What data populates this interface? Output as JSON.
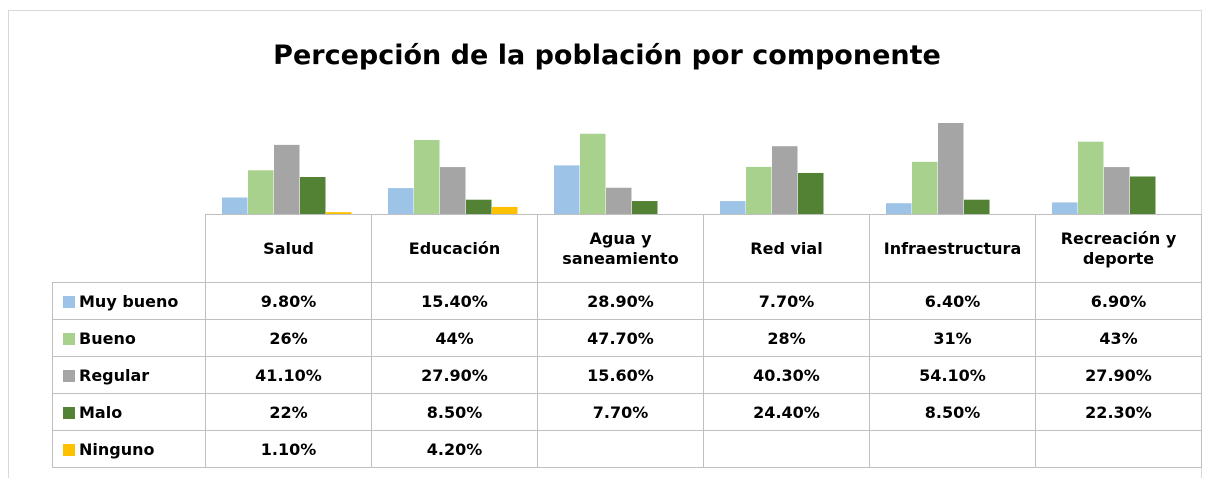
{
  "chart_data": {
    "type": "bar",
    "title": "Percepción de la población por componente",
    "categories": [
      "Salud",
      "Educación",
      "Agua y saneamiento",
      "Red vial",
      "Infraestructura",
      "Recreación y deporte"
    ],
    "series": [
      {
        "name": "Muy bueno",
        "color": "#9dc3e6",
        "values": [
          9.8,
          15.4,
          28.9,
          7.7,
          6.4,
          6.9
        ],
        "value_labels": [
          "9.80%",
          "15.40%",
          "28.90%",
          "7.70%",
          "6.40%",
          "6.90%"
        ]
      },
      {
        "name": "Bueno",
        "color": "#a9d18e",
        "values": [
          26,
          44,
          47.7,
          28,
          31,
          43
        ],
        "value_labels": [
          "26%",
          "44%",
          "47.70%",
          "28%",
          "31%",
          "43%"
        ]
      },
      {
        "name": "Regular",
        "color": "#a5a5a5",
        "values": [
          41.1,
          27.9,
          15.6,
          40.3,
          54.1,
          27.9
        ],
        "value_labels": [
          "41.10%",
          "27.90%",
          "15.60%",
          "40.30%",
          "54.10%",
          "27.90%"
        ]
      },
      {
        "name": "Malo",
        "color": "#548235",
        "values": [
          22,
          8.5,
          7.7,
          24.4,
          8.5,
          22.3
        ],
        "value_labels": [
          "22%",
          "8.50%",
          "7.70%",
          "24.40%",
          "8.50%",
          "22.30%"
        ]
      },
      {
        "name": "Ninguno",
        "color": "#ffc000",
        "values": [
          1.1,
          4.2,
          null,
          null,
          null,
          null
        ],
        "value_labels": [
          "1.10%",
          "4.20%",
          null,
          null,
          null,
          null
        ]
      }
    ]
  }
}
